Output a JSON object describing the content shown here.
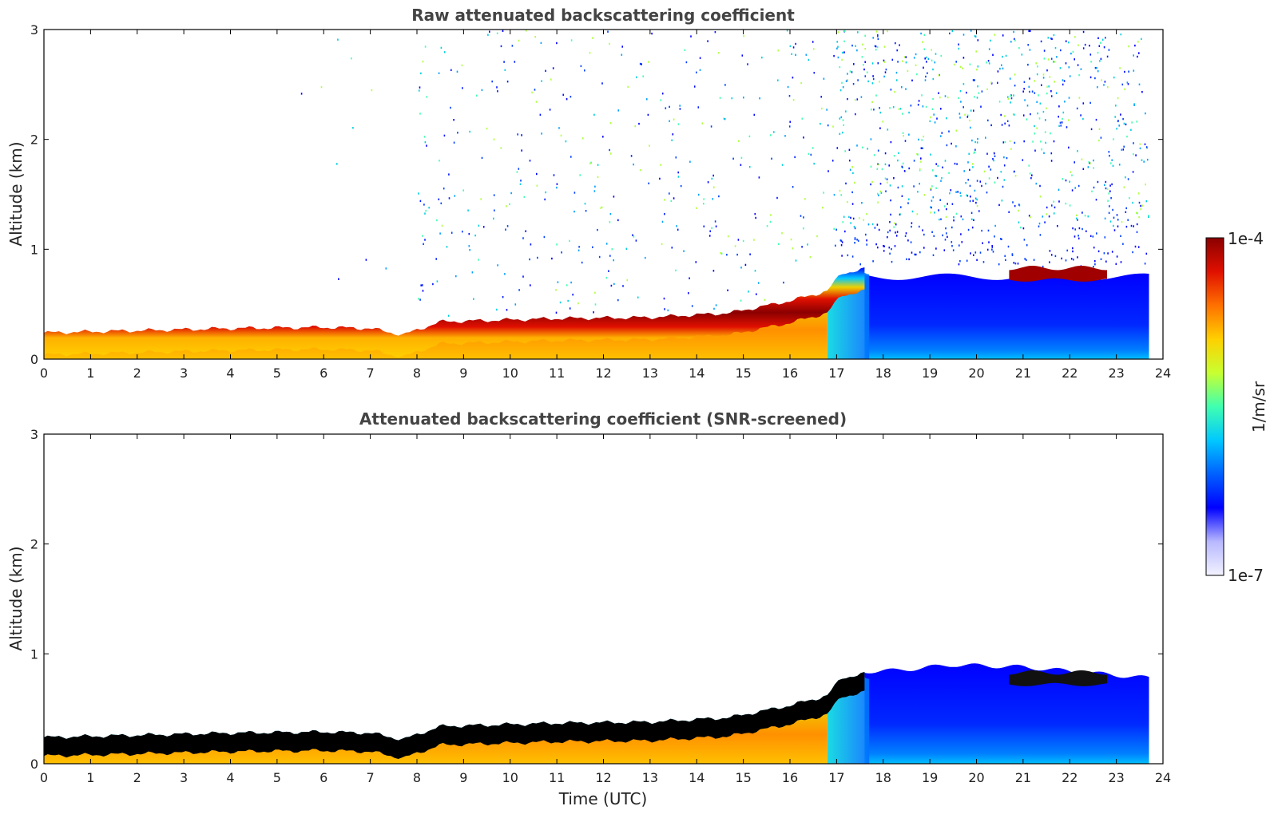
{
  "chart_data": [
    {
      "type": "heatmap",
      "title": "Raw attenuated backscattering coefficient",
      "xlabel": "",
      "ylabel": "Altitude (km)",
      "xlim": [
        0,
        24
      ],
      "ylim": [
        0,
        3
      ],
      "xticks": [
        "0",
        "1",
        "2",
        "3",
        "4",
        "5",
        "6",
        "7",
        "8",
        "9",
        "10",
        "11",
        "12",
        "13",
        "14",
        "15",
        "16",
        "17",
        "18",
        "19",
        "20",
        "21",
        "22",
        "23",
        "24"
      ],
      "yticks": [
        "0",
        "1",
        "2",
        "3"
      ],
      "aerosol_layer_top_km": [
        {
          "t": 0,
          "z": 0.24
        },
        {
          "t": 2,
          "z": 0.26
        },
        {
          "t": 4,
          "z": 0.28
        },
        {
          "t": 6,
          "z": 0.29
        },
        {
          "t": 7,
          "z": 0.28
        },
        {
          "t": 7.7,
          "z": 0.22
        },
        {
          "t": 8.5,
          "z": 0.34
        },
        {
          "t": 11,
          "z": 0.37
        },
        {
          "t": 13,
          "z": 0.38
        },
        {
          "t": 14.7,
          "z": 0.42
        },
        {
          "t": 16,
          "z": 0.53
        },
        {
          "t": 16.8,
          "z": 0.62
        },
        {
          "t": 17.1,
          "z": 0.78
        },
        {
          "t": 17.6,
          "z": 0.82
        },
        {
          "t": 23.7,
          "z": 0.75
        }
      ],
      "elevated_layer": {
        "t_start": 20.7,
        "t_end": 22.8,
        "z_km": 0.78
      },
      "data_end_time": 23.7
    },
    {
      "type": "heatmap",
      "title": "Attenuated backscattering coefficient (SNR-screened)",
      "xlabel": "Time (UTC)",
      "ylabel": "Altitude (km)",
      "xlim": [
        0,
        24
      ],
      "ylim": [
        0,
        3
      ],
      "xticks": [
        "0",
        "1",
        "2",
        "3",
        "4",
        "5",
        "6",
        "7",
        "8",
        "9",
        "10",
        "11",
        "12",
        "13",
        "14",
        "15",
        "16",
        "17",
        "18",
        "19",
        "20",
        "21",
        "22",
        "23",
        "24"
      ],
      "yticks": [
        "0",
        "1",
        "2",
        "3"
      ],
      "screened_top_km": [
        {
          "t": 17.6,
          "z": 0.84
        },
        {
          "t": 18.3,
          "z": 0.85
        },
        {
          "t": 19.5,
          "z": 0.9
        },
        {
          "t": 21,
          "z": 0.88
        },
        {
          "t": 23.7,
          "z": 0.78
        }
      ]
    }
  ],
  "colorbar": {
    "label": "1/m/sr",
    "max_label": "1e-4",
    "min_label": "1e-7",
    "vmin": 1e-07,
    "vmax": 0.0001,
    "scale": "log",
    "palette": [
      "#f2f2ff",
      "#b8b8ff",
      "#0000ff",
      "#0060ff",
      "#00c8ff",
      "#40ffb0",
      "#c8ff30",
      "#ffd000",
      "#ff7000",
      "#e01000",
      "#8b0000"
    ]
  }
}
